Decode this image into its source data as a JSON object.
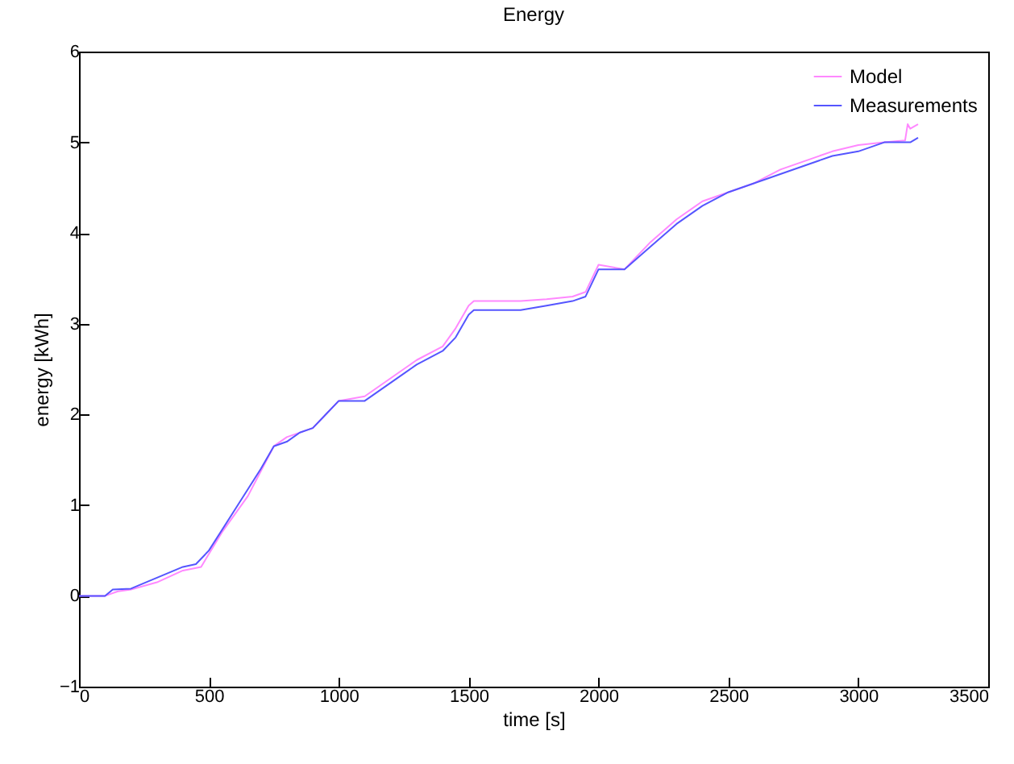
{
  "chart_data": {
    "type": "line",
    "title": "Energy",
    "xlabel": "time [s]",
    "ylabel": "energy [kWh]",
    "xlim": [
      0,
      3500
    ],
    "ylim": [
      -1,
      6
    ],
    "xticks": [
      0,
      500,
      1000,
      1500,
      2000,
      2500,
      3000,
      3500
    ],
    "yticks": [
      -1,
      0,
      1,
      2,
      3,
      4,
      5,
      6
    ],
    "grid": false,
    "legend": "top right",
    "marker": "none",
    "line_style": "solid",
    "series": [
      {
        "name": "Model",
        "color": "#ff88ff",
        "x": [
          0,
          100,
          150,
          200,
          300,
          400,
          470,
          550,
          650,
          750,
          800,
          900,
          1000,
          1100,
          1200,
          1300,
          1400,
          1450,
          1500,
          1520,
          1700,
          1800,
          1900,
          1950,
          2000,
          2100,
          2200,
          2300,
          2400,
          2500,
          2600,
          2700,
          2800,
          2900,
          3000,
          3100,
          3180,
          3190,
          3200,
          3230
        ],
        "values": [
          0,
          0,
          0.05,
          0.07,
          0.15,
          0.28,
          0.32,
          0.7,
          1.1,
          1.65,
          1.75,
          1.85,
          2.15,
          2.2,
          2.4,
          2.6,
          2.75,
          2.95,
          3.2,
          3.25,
          3.25,
          3.27,
          3.3,
          3.35,
          3.65,
          3.6,
          3.9,
          4.15,
          4.35,
          4.45,
          4.55,
          4.7,
          4.8,
          4.9,
          4.97,
          5.0,
          5.02,
          5.2,
          5.15,
          5.2
        ]
      },
      {
        "name": "Measurements",
        "color": "#5555ff",
        "x": [
          0,
          100,
          130,
          200,
          300,
          400,
          450,
          500,
          600,
          700,
          750,
          800,
          850,
          900,
          950,
          1000,
          1100,
          1200,
          1300,
          1400,
          1450,
          1500,
          1520,
          1700,
          1800,
          1900,
          1950,
          2000,
          2100,
          2200,
          2300,
          2400,
          2500,
          2600,
          2700,
          2800,
          2900,
          3000,
          3100,
          3200,
          3230
        ],
        "values": [
          0,
          0,
          0.07,
          0.08,
          0.2,
          0.32,
          0.35,
          0.5,
          0.95,
          1.4,
          1.65,
          1.7,
          1.8,
          1.85,
          2.0,
          2.15,
          2.15,
          2.35,
          2.55,
          2.7,
          2.85,
          3.1,
          3.15,
          3.15,
          3.2,
          3.25,
          3.3,
          3.6,
          3.6,
          3.85,
          4.1,
          4.3,
          4.45,
          4.55,
          4.65,
          4.75,
          4.85,
          4.9,
          5.0,
          5.0,
          5.05
        ]
      }
    ]
  }
}
